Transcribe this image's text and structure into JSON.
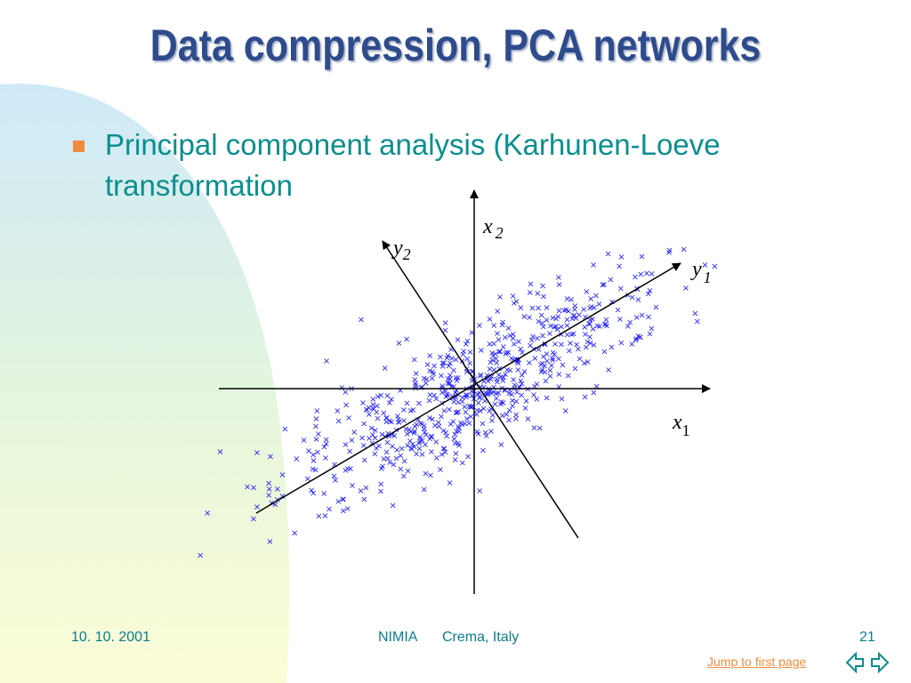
{
  "header": {
    "title": "Data compression, PCA networks"
  },
  "bullets": [
    "Principal component analysis (Karhunen-Loeve transformation"
  ],
  "diagram": {
    "axes": [
      {
        "letter": "x",
        "sub": "2"
      },
      {
        "letter": "y",
        "sub": "2"
      },
      {
        "letter": "y",
        "sub": "1"
      },
      {
        "letter": "x",
        "sub": "1"
      }
    ]
  },
  "footer": {
    "date": "10. 10. 2001",
    "org": "NIMIA",
    "place": "Crema, Italy",
    "page": "21",
    "link": "Jump to first page"
  }
}
